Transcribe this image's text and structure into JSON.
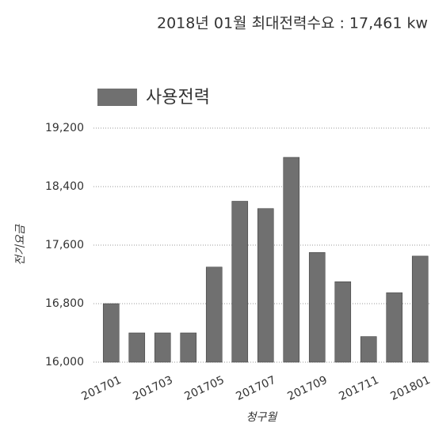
{
  "chart_data": {
    "type": "bar",
    "title": "2018년 01월 최대전력수요 : 17,461 kw",
    "y_label": "전기요금",
    "x_label": "청구월",
    "categories": [
      "201701",
      null,
      "201703",
      null,
      "201705",
      null,
      "201707",
      null,
      "201709",
      null,
      "201711",
      null,
      "201801"
    ],
    "series": [
      {
        "name": "사용전력",
        "color": "#707070",
        "values": [
          16800,
          16400,
          16400,
          16400,
          17300,
          18200,
          18100,
          18800,
          17500,
          17100,
          16350,
          16950,
          17450
        ]
      }
    ],
    "ylim": [
      16000,
      19200
    ],
    "yticks": [
      {
        "value": 16000,
        "label": "16,000"
      },
      {
        "value": 16800,
        "label": "16,800"
      },
      {
        "value": 17600,
        "label": "17,600"
      },
      {
        "value": 18400,
        "label": "18,400"
      },
      {
        "value": 19200,
        "label": "19,200"
      }
    ],
    "grid": true
  }
}
